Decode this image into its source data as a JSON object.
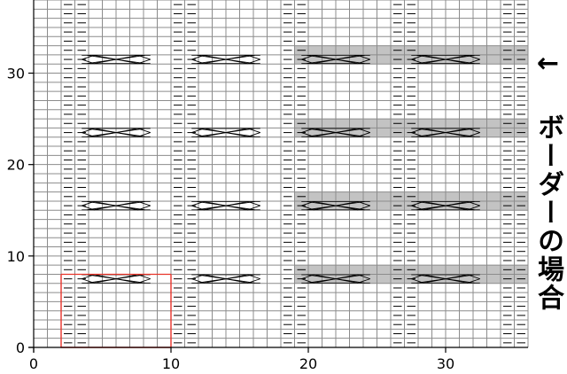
{
  "chart_data": {
    "type": "knitting-chart-grid",
    "xlim": [
      0,
      36
    ],
    "ylim": [
      0,
      38
    ],
    "x_ticks": [
      0,
      10,
      20,
      30
    ],
    "y_ticks": [
      0,
      10,
      20,
      30
    ],
    "purl_columns": [
      2,
      3,
      10,
      11,
      18,
      19,
      26,
      27,
      34,
      35
    ],
    "cable_rows": [
      7.5,
      15.5,
      23.5,
      31.5
    ],
    "cable_segments": [
      [
        3.5,
        8.5
      ],
      [
        11.5,
        16.5
      ],
      [
        19.5,
        24.5
      ],
      [
        27.5,
        32.5
      ]
    ],
    "shaded_rows": [
      [
        7,
        9
      ],
      [
        15,
        17
      ],
      [
        23,
        25
      ],
      [
        31,
        33
      ]
    ],
    "shaded_x_range": [
      19,
      36
    ],
    "highlight_box": {
      "x": [
        2,
        10
      ],
      "y": [
        0,
        8
      ]
    },
    "colors": {
      "grid": "#8c8c8c",
      "shade": "#c3c3c3",
      "highlight": "#e8342a",
      "mark": "#000000"
    }
  },
  "annotation": "← ボーダーの場合"
}
